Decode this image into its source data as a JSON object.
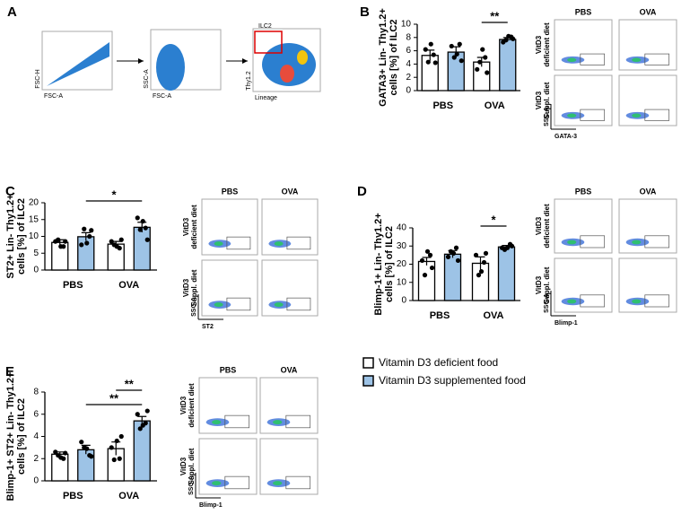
{
  "figure": {
    "panels": [
      "A",
      "B",
      "C",
      "D",
      "E"
    ],
    "gating": [
      {
        "x_label": "FSC-A",
        "y_label": "FSC-H"
      },
      {
        "x_label": "FSC-A",
        "y_label": "SSC-A"
      },
      {
        "x_label": "Lineage",
        "y_label": "Thy1.2",
        "gate": "ILC2"
      }
    ],
    "flow": [
      {
        "columns": [
          "PBS",
          "OVA"
        ],
        "rows": [
          [
            "VitD3",
            "deficient diet"
          ],
          [
            "VitD3",
            "Suppl. diet"
          ]
        ],
        "x_label": "GATA-3",
        "y_label": "SSC-A"
      },
      {
        "columns": [
          "PBS",
          "OVA"
        ],
        "rows": [
          [
            "VitD3",
            "deficient diet"
          ],
          [
            "VitD3",
            "Suppl. diet"
          ]
        ],
        "x_label": "ST2",
        "y_label": "SSC-A"
      },
      {
        "columns": [
          "PBS",
          "OVA"
        ],
        "rows": [
          [
            "VitD3",
            "deficient diet"
          ],
          [
            "VitD3",
            "Suppl. diet"
          ]
        ],
        "x_label": "Blimp-1",
        "y_label": "SSC-A"
      },
      {
        "columns": [
          "PBS",
          "OVA"
        ],
        "rows": [
          [
            "VitD3",
            "deficient diet"
          ],
          [
            "VitD3",
            "Suppl. diet"
          ]
        ],
        "x_label": "Blimp-1",
        "y_label": "SSC-A"
      }
    ]
  },
  "chart_data": [
    {
      "type": "bar",
      "ylabel": [
        "GATA3+ Lin- Thy1.2+",
        "cells [%] of ILC2"
      ],
      "categories": [
        "PBS",
        "OVA"
      ],
      "series": [
        {
          "name": "Vitamin D3 deficient food",
          "color": "#ffffff",
          "values": [
            5.3,
            4.3
          ],
          "errors": [
            0.8,
            0.7
          ],
          "points": [
            [
              6.2,
              5.4,
              4.3,
              4.2,
              7.0
            ],
            [
              3.2,
              5.0,
              4.3,
              2.7,
              6.2
            ]
          ]
        },
        {
          "name": "Vitamin D3 supplemented food",
          "color": "#9dc3e6",
          "values": [
            5.8,
            7.7
          ],
          "errors": [
            0.8,
            0.3
          ],
          "points": [
            [
              6.7,
              7.0,
              5.0,
              4.5,
              5.5
            ],
            [
              7.3,
              8.1,
              7.6,
              7.8,
              8.2
            ]
          ]
        }
      ],
      "ylim": [
        0,
        10
      ],
      "yticks": [
        0,
        2,
        4,
        6,
        8,
        10
      ],
      "significance": [
        {
          "label": "**",
          "from": [
            1,
            0
          ],
          "to": [
            1,
            1
          ]
        }
      ]
    },
    {
      "type": "bar",
      "ylabel": [
        "ST2+ Lin- Thy1.2+",
        "cells [%] of ILC2"
      ],
      "categories": [
        "PBS",
        "OVA"
      ],
      "series": [
        {
          "name": "Vitamin D3 deficient food",
          "color": "#ffffff",
          "values": [
            8.2,
            7.7
          ],
          "errors": [
            0.8,
            0.8
          ],
          "points": [
            [
              8.5,
              7.0,
              9.0,
              8.5,
              7.0
            ],
            [
              8.5,
              6.5,
              7.5,
              9.0,
              7.0
            ]
          ]
        },
        {
          "name": "Vitamin D3 supplemented food",
          "color": "#9dc3e6",
          "values": [
            9.9,
            12.7
          ],
          "errors": [
            1.2,
            1.5
          ],
          "points": [
            [
              7.5,
              10.0,
              12.2,
              11.8,
              8.0
            ],
            [
              15.5,
              12.5,
              12.0,
              9.0,
              14.5
            ]
          ]
        }
      ],
      "ylim": [
        0,
        20
      ],
      "yticks": [
        0,
        5,
        10,
        15,
        20
      ],
      "significance": [
        {
          "label": "*",
          "from": [
            0,
            1
          ],
          "to": [
            1,
            1
          ]
        }
      ]
    },
    {
      "type": "bar",
      "ylabel": [
        "Blimp-1+ Lin- Thy1.2+",
        "cells [%] of ILC2"
      ],
      "categories": [
        "PBS",
        "OVA"
      ],
      "series": [
        {
          "name": "Vitamin D3 deficient food",
          "color": "#ffffff",
          "values": [
            21.5,
            20.5
          ],
          "errors": [
            2.2,
            3.5
          ],
          "points": [
            [
              22,
              25,
              14,
              18,
              27
            ],
            [
              25,
              21,
              14,
              26,
              16
            ]
          ]
        },
        {
          "name": "Vitamin D3 supplemented food",
          "color": "#9dc3e6",
          "values": [
            25.5,
            29.5
          ],
          "errors": [
            2.0,
            0.8
          ],
          "points": [
            [
              24,
              29,
              27,
              22,
              26
            ],
            [
              29,
              31,
              28,
              30,
              29
            ]
          ]
        }
      ],
      "ylim": [
        0,
        40
      ],
      "yticks": [
        0,
        10,
        20,
        30,
        40
      ],
      "significance": [
        {
          "label": "*",
          "from": [
            1,
            0
          ],
          "to": [
            1,
            1
          ]
        }
      ]
    },
    {
      "type": "bar",
      "ylabel": [
        "Blimp-1+ ST2+ Lin- Thy1.2+",
        "cells [%] of ILC2"
      ],
      "categories": [
        "PBS",
        "OVA"
      ],
      "series": [
        {
          "name": "Vitamin D3 deficient food",
          "color": "#ffffff",
          "values": [
            2.4,
            2.9
          ],
          "errors": [
            0.2,
            0.6
          ],
          "points": [
            [
              2.6,
              2.0,
              2.3,
              2.5,
              2.1
            ],
            [
              3.0,
              2.0,
              1.9,
              4.0,
              3.6
            ]
          ]
        },
        {
          "name": "Vitamin D3 supplemented food",
          "color": "#9dc3e6",
          "values": [
            2.8,
            5.4
          ],
          "errors": [
            0.4,
            0.4
          ],
          "points": [
            [
              3.5,
              2.3,
              3.0,
              2.2,
              2.9
            ],
            [
              6.0,
              5.2,
              4.7,
              6.3,
              5.0
            ]
          ]
        }
      ],
      "ylim": [
        0,
        8
      ],
      "yticks": [
        0,
        2,
        4,
        6,
        8
      ],
      "significance": [
        {
          "label": "**",
          "from": [
            1,
            0
          ],
          "to": [
            1,
            1
          ]
        },
        {
          "label": "**",
          "from": [
            0,
            1
          ],
          "to": [
            1,
            1
          ]
        }
      ]
    }
  ]
}
